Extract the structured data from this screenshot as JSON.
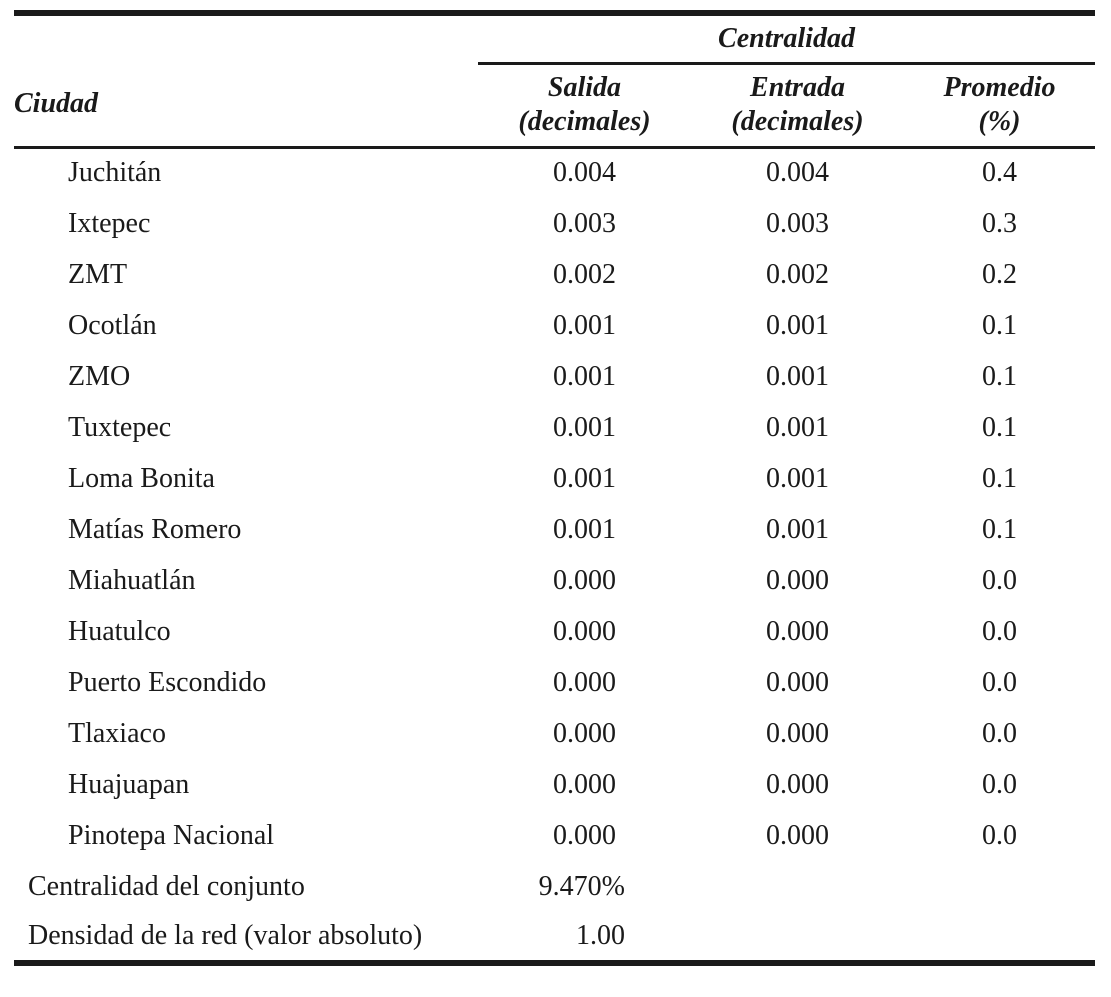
{
  "page": {
    "background": "#ffffff",
    "text_color": "#1a1a1a"
  },
  "table": {
    "group_header": "Centralidad",
    "city_header": "Ciudad",
    "columns": [
      {
        "line1": "Salida",
        "line2": "(decimales)"
      },
      {
        "line1": "Entrada",
        "line2": "(decimales)"
      },
      {
        "line1": "Promedio",
        "line2": "(%)"
      }
    ],
    "rows": [
      {
        "city": "Juchitán",
        "salida": "0.004",
        "entrada": "0.004",
        "promedio": "0.4"
      },
      {
        "city": "Ixtepec",
        "salida": "0.003",
        "entrada": "0.003",
        "promedio": "0.3"
      },
      {
        "city": "ZMT",
        "salida": "0.002",
        "entrada": "0.002",
        "promedio": "0.2"
      },
      {
        "city": "Ocotlán",
        "salida": "0.001",
        "entrada": "0.001",
        "promedio": "0.1"
      },
      {
        "city": "ZMO",
        "salida": "0.001",
        "entrada": "0.001",
        "promedio": "0.1"
      },
      {
        "city": "Tuxtepec",
        "salida": "0.001",
        "entrada": "0.001",
        "promedio": "0.1"
      },
      {
        "city": "Loma Bonita",
        "salida": "0.001",
        "entrada": "0.001",
        "promedio": "0.1"
      },
      {
        "city": "Matías Romero",
        "salida": "0.001",
        "entrada": "0.001",
        "promedio": "0.1"
      },
      {
        "city": "Miahuatlán",
        "salida": "0.000",
        "entrada": "0.000",
        "promedio": "0.0"
      },
      {
        "city": "Huatulco",
        "salida": "0.000",
        "entrada": "0.000",
        "promedio": "0.0"
      },
      {
        "city": "Puerto Escondido",
        "salida": "0.000",
        "entrada": "0.000",
        "promedio": "0.0"
      },
      {
        "city": "Tlaxiaco",
        "salida": "0.000",
        "entrada": "0.000",
        "promedio": "0.0"
      },
      {
        "city": "Huajuapan",
        "salida": "0.000",
        "entrada": "0.000",
        "promedio": "0.0"
      },
      {
        "city": "Pinotepa Nacional",
        "salida": "0.000",
        "entrada": "0.000",
        "promedio": "0.0"
      }
    ],
    "footer_rows": [
      {
        "label": "Centralidad del conjunto",
        "value": "9.470%"
      },
      {
        "label": "Densidad de la red (valor absoluto)",
        "value": "1.00"
      }
    ]
  }
}
